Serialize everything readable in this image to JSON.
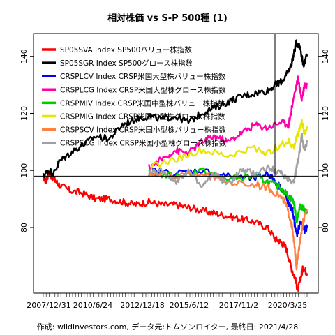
{
  "chart_data": {
    "type": "line",
    "title": "相対株価 vs S-P 500種 (1)",
    "caption": "作成: wildinvestors.com, データ元:トムソンロイター, 最終日: 2021/4/28",
    "x_tick_labels": [
      "2007/12/31",
      "2010/6/24",
      "2012/12/18",
      "2015/6/12",
      "2017/11/2",
      "2020/3/25"
    ],
    "y_ticks": [
      80,
      100,
      120,
      140
    ],
    "ylim": [
      57,
      148
    ],
    "baseline": 98,
    "legend_position": "top-left",
    "grid": false,
    "series": [
      {
        "name": "SP05SVA Index SP500バリュー株指数",
        "color": "#ff0000",
        "x": [
          0.0,
          0.01,
          0.02,
          0.04,
          0.06,
          0.1,
          0.15,
          0.2,
          0.25,
          0.3,
          0.35,
          0.4,
          0.45,
          0.5,
          0.55,
          0.6,
          0.65,
          0.7,
          0.75,
          0.8,
          0.85,
          0.88,
          0.9,
          0.92,
          0.94,
          0.955,
          0.965,
          0.975,
          0.985,
          1.0
        ],
        "values": [
          98,
          96,
          99,
          97,
          95,
          93,
          92,
          90,
          90,
          89,
          88,
          89,
          88,
          88,
          87,
          86,
          85,
          84,
          83,
          82,
          80,
          76,
          75,
          73,
          66,
          62,
          58,
          62,
          66,
          64
        ]
      },
      {
        "name": "SP05SGR Index SP500グロース株指数",
        "color": "#000000",
        "x": [
          0.0,
          0.02,
          0.04,
          0.06,
          0.1,
          0.15,
          0.2,
          0.25,
          0.3,
          0.35,
          0.4,
          0.45,
          0.5,
          0.55,
          0.6,
          0.65,
          0.7,
          0.75,
          0.8,
          0.85,
          0.88,
          0.9,
          0.92,
          0.94,
          0.95,
          0.96,
          0.975,
          0.985,
          1.0
        ],
        "values": [
          98,
          100,
          99,
          103,
          106,
          109,
          112,
          111,
          116,
          118,
          119,
          118,
          119,
          117,
          120,
          122,
          124,
          126,
          127,
          128,
          130,
          131,
          133,
          137,
          141,
          145,
          143,
          137,
          140
        ]
      },
      {
        "name": "CRSPLCV Index CRSP米国大型株バリュー株指数",
        "color": "#0000ff",
        "x": [
          0.4,
          0.5,
          0.6,
          0.7,
          0.8,
          0.85,
          0.88,
          0.91,
          0.93,
          0.945,
          0.96,
          0.975,
          0.99,
          1.0
        ],
        "values": [
          100,
          99,
          100,
          98,
          97,
          99,
          96,
          93,
          88,
          86,
          77,
          82,
          79,
          80
        ]
      },
      {
        "name": "CRSPLCG Index CRSP米国大型株グロース株指数",
        "color": "#ff00aa",
        "x": [
          0.4,
          0.45,
          0.5,
          0.55,
          0.6,
          0.65,
          0.7,
          0.75,
          0.8,
          0.85,
          0.9,
          0.93,
          0.95,
          0.965,
          0.98,
          0.99,
          1.0
        ],
        "values": [
          101,
          104,
          107,
          106,
          110,
          112,
          110,
          113,
          116,
          115,
          117,
          116,
          126,
          132,
          125,
          130,
          130
        ]
      },
      {
        "name": "CRSPMIV Index CRSP米国中型株バリュー株指数",
        "color": "#00cc00",
        "x": [
          0.4,
          0.5,
          0.6,
          0.7,
          0.8,
          0.85,
          0.9,
          0.93,
          0.95,
          0.96,
          0.975,
          0.99,
          1.0
        ],
        "values": [
          99,
          98,
          100,
          97,
          98,
          96,
          94,
          91,
          89,
          82,
          88,
          86,
          85
        ]
      },
      {
        "name": "CRSPMIG Index CRSP米国中型株グロース株指数",
        "color": "#e6e600",
        "x": [
          0.4,
          0.5,
          0.6,
          0.7,
          0.8,
          0.85,
          0.9,
          0.93,
          0.95,
          0.965,
          0.98,
          0.99,
          1.0
        ],
        "values": [
          101,
          104,
          107,
          105,
          108,
          106,
          109,
          110,
          108,
          113,
          117,
          113,
          115
        ]
      },
      {
        "name": "CRSPSCV Index CRSP米国小型株バリュー株指数",
        "color": "#ff8040",
        "x": [
          0.4,
          0.5,
          0.6,
          0.7,
          0.8,
          0.85,
          0.9,
          0.92,
          0.94,
          0.95,
          0.96,
          0.97,
          0.985,
          1.0
        ],
        "values": [
          99,
          98,
          99,
          96,
          95,
          94,
          91,
          88,
          82,
          75,
          66,
          73,
          82,
          86
        ]
      },
      {
        "name": "CRSPSCG Index CRSP米国小型株グロース株指数",
        "color": "#a0a0a0",
        "x": [
          0.4,
          0.45,
          0.5,
          0.55,
          0.6,
          0.65,
          0.7,
          0.75,
          0.8,
          0.85,
          0.9,
          0.93,
          0.95,
          0.965,
          0.98,
          0.99,
          1.0
        ],
        "values": [
          99,
          100,
          96,
          100,
          94,
          99,
          95,
          100,
          99,
          101,
          99,
          97,
          96,
          103,
          112,
          107,
          110
        ]
      }
    ]
  }
}
